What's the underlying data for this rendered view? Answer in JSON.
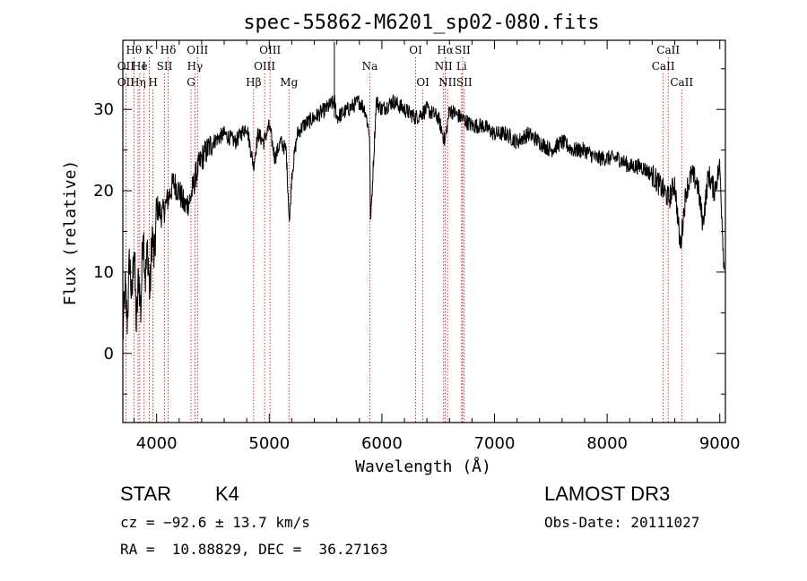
{
  "chart_data": {
    "type": "line",
    "title": "spec-55862-M6201_sp02-080.fits",
    "xlabel": "Wavelength (Å)",
    "ylabel": "Flux (relative)",
    "xlim": [
      3700,
      9050
    ],
    "ylim": [
      -8.5,
      38.5
    ],
    "xticks": [
      4000,
      5000,
      6000,
      7000,
      8000,
      9000
    ],
    "yticks": [
      0,
      10,
      20,
      30
    ],
    "series": [
      {
        "name": "spectrum",
        "anchors_x": [
          3700,
          3720,
          3740,
          3760,
          3780,
          3800,
          3820,
          3840,
          3860,
          3880,
          3900,
          3920,
          3940,
          3960,
          3980,
          4000,
          4050,
          4100,
          4150,
          4200,
          4250,
          4300,
          4350,
          4400,
          4450,
          4500,
          4600,
          4700,
          4800,
          4860,
          4900,
          4950,
          5000,
          5050,
          5100,
          5150,
          5180,
          5200,
          5250,
          5300,
          5400,
          5500,
          5580,
          5600,
          5700,
          5800,
          5850,
          5890,
          5900,
          5950,
          6000,
          6100,
          6200,
          6300,
          6400,
          6500,
          6560,
          6600,
          6700,
          6800,
          6900,
          7000,
          7100,
          7200,
          7300,
          7400,
          7500,
          7600,
          7700,
          7800,
          7900,
          8000,
          8100,
          8200,
          8300,
          8400,
          8450,
          8500,
          8550,
          8600,
          8650,
          8700,
          8750,
          8800,
          8850,
          8900,
          8950,
          9000,
          9040
        ],
        "anchors_y": [
          2,
          8,
          4,
          12,
          6,
          14,
          3,
          10,
          5,
          16,
          9,
          13,
          7,
          15,
          11,
          18,
          17,
          19,
          21,
          20,
          18,
          19,
          22,
          24,
          25,
          26,
          27,
          26,
          28,
          23,
          27,
          26,
          28,
          24,
          26,
          25,
          16,
          22,
          27,
          28,
          29,
          30,
          31,
          29,
          30,
          31,
          30,
          27,
          16,
          31,
          30,
          31,
          30,
          29,
          30,
          29,
          26,
          30,
          29,
          28,
          28,
          27,
          27,
          26,
          27,
          26,
          25,
          26,
          25,
          25,
          24,
          24,
          24,
          23,
          23,
          22,
          21,
          20,
          19,
          21,
          13,
          20,
          22,
          21,
          16,
          22,
          20,
          23,
          10
        ],
        "note": "approximate continuum read from the plot; noise added procedurally"
      }
    ],
    "lines_top": [
      {
        "label": "Hθ",
        "x": 3798
      },
      {
        "label": "K",
        "x": 3934
      },
      {
        "label": "Hδ",
        "x": 4102
      },
      {
        "label": "OIII",
        "x": 4363
      },
      {
        "label": "OIII",
        "x": 5007
      },
      {
        "label": "OI",
        "x": 6300
      },
      {
        "label": "Hα",
        "x": 6563
      },
      {
        "label": "SII",
        "x": 6717
      },
      {
        "label": "CaII",
        "x": 8542
      }
    ],
    "lines_mid": [
      {
        "label": "OII",
        "x": 3727
      },
      {
        "label": "He",
        "x": 3850
      },
      {
        "label": "I",
        "x": 3889
      },
      {
        "label": "SII",
        "x": 4070
      },
      {
        "label": "Hγ",
        "x": 4340
      },
      {
        "label": "OIII",
        "x": 4959
      },
      {
        "label": "Na",
        "x": 5893
      },
      {
        "label": "NII",
        "x": 6548
      },
      {
        "label": "Li",
        "x": 6708
      },
      {
        "label": "CaII",
        "x": 8498
      }
    ],
    "lines_low": [
      {
        "label": "OII",
        "x": 3727
      },
      {
        "label": "Hη",
        "x": 3835
      },
      {
        "label": "H",
        "x": 3968
      },
      {
        "label": "G",
        "x": 4305
      },
      {
        "label": "Hβ",
        "x": 4861
      },
      {
        "label": "Mg",
        "x": 5175
      },
      {
        "label": "OI",
        "x": 6364
      },
      {
        "label": "NII",
        "x": 6583
      },
      {
        "label": "SII",
        "x": 6731
      },
      {
        "label": "CaII",
        "x": 8662
      }
    ],
    "line_color": "#cc0000"
  },
  "info": {
    "class": "STAR",
    "subclass": "K4",
    "survey": "LAMOST DR3",
    "cz": "cz = −92.6 ± 13.7 km/s",
    "obsdate": "Obs-Date: 20111027",
    "coords": "RA =  10.88829, DEC =  36.27163"
  }
}
